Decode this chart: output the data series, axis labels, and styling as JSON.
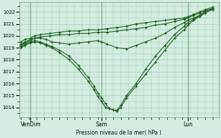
{
  "title": "Pression niveau de la mer( hPa )",
  "bg_color": "#d4ede0",
  "grid_color": "#90c4a8",
  "line_color": "#1a5c1a",
  "ylim": [
    1013.2,
    1022.8
  ],
  "yticks": [
    1014,
    1015,
    1016,
    1017,
    1018,
    1019,
    1020,
    1021,
    1022
  ],
  "xtick_labels": [
    "VenDim",
    "Sam",
    "Lun"
  ],
  "xtick_positions": [
    0.05,
    0.42,
    0.87
  ],
  "series": [
    {
      "x": [
        0.0,
        0.02,
        0.05,
        0.07,
        0.1,
        0.15,
        0.2,
        0.25,
        0.3,
        0.35,
        0.4,
        0.45,
        0.5,
        0.55,
        0.6,
        0.65,
        0.7,
        0.75,
        0.8,
        0.85,
        0.87,
        0.9,
        0.93,
        0.96,
        1.0
      ],
      "y": [
        1019.5,
        1019.7,
        1019.8,
        1020.0,
        1020.1,
        1020.2,
        1020.3,
        1020.4,
        1020.4,
        1020.5,
        1020.5,
        1020.6,
        1020.7,
        1020.8,
        1021.0,
        1021.1,
        1021.2,
        1021.3,
        1021.4,
        1021.5,
        1021.6,
        1021.8,
        1022.0,
        1022.2,
        1022.4
      ]
    },
    {
      "x": [
        0.0,
        0.02,
        0.05,
        0.07,
        0.1,
        0.15,
        0.2,
        0.25,
        0.3,
        0.35,
        0.4,
        0.45,
        0.5,
        0.55,
        0.6,
        0.65,
        0.7,
        0.75,
        0.8,
        0.85,
        0.87,
        0.9,
        0.93,
        0.96,
        1.0
      ],
      "y": [
        1019.3,
        1019.5,
        1019.7,
        1019.8,
        1019.9,
        1020.0,
        1020.1,
        1020.1,
        1020.2,
        1020.2,
        1020.3,
        1020.3,
        1020.4,
        1020.5,
        1020.6,
        1020.7,
        1020.9,
        1021.0,
        1021.2,
        1021.4,
        1021.5,
        1021.7,
        1021.9,
        1022.1,
        1022.3
      ]
    },
    {
      "x": [
        0.0,
        0.02,
        0.05,
        0.07,
        0.1,
        0.13,
        0.16,
        0.2,
        0.25,
        0.3,
        0.35,
        0.4,
        0.42,
        0.45,
        0.5,
        0.55,
        0.6,
        0.65,
        0.7,
        0.75,
        0.8,
        0.85,
        0.87,
        0.9,
        0.93,
        0.96,
        1.0
      ],
      "y": [
        1019.2,
        1019.4,
        1019.6,
        1019.8,
        1019.8,
        1019.7,
        1019.5,
        1019.4,
        1019.3,
        1019.4,
        1019.5,
        1019.6,
        1019.5,
        1019.3,
        1019.0,
        1018.9,
        1019.2,
        1019.5,
        1019.8,
        1020.2,
        1020.7,
        1021.1,
        1021.3,
        1021.5,
        1021.7,
        1022.0,
        1022.2
      ]
    },
    {
      "x": [
        0.0,
        0.02,
        0.05,
        0.07,
        0.1,
        0.13,
        0.16,
        0.2,
        0.25,
        0.3,
        0.35,
        0.38,
        0.4,
        0.42,
        0.44,
        0.46,
        0.48,
        0.5,
        0.52,
        0.55,
        0.6,
        0.65,
        0.7,
        0.75,
        0.8,
        0.85,
        0.87,
        0.9,
        0.93,
        0.96,
        1.0
      ],
      "y": [
        1019.1,
        1019.3,
        1019.5,
        1019.6,
        1019.5,
        1019.3,
        1019.1,
        1018.8,
        1018.3,
        1017.5,
        1016.5,
        1015.8,
        1015.2,
        1014.8,
        1014.3,
        1013.9,
        1013.8,
        1013.7,
        1014.0,
        1014.8,
        1015.8,
        1016.8,
        1017.8,
        1018.8,
        1019.8,
        1020.5,
        1020.9,
        1021.3,
        1021.6,
        1021.9,
        1022.3
      ]
    },
    {
      "x": [
        0.0,
        0.02,
        0.05,
        0.07,
        0.1,
        0.13,
        0.16,
        0.2,
        0.25,
        0.3,
        0.35,
        0.38,
        0.4,
        0.42,
        0.44,
        0.46,
        0.48,
        0.5,
        0.52,
        0.55,
        0.6,
        0.65,
        0.7,
        0.75,
        0.8,
        0.85,
        0.87,
        0.9,
        0.93,
        0.96,
        1.0
      ],
      "y": [
        1019.0,
        1019.2,
        1019.4,
        1019.5,
        1019.4,
        1019.2,
        1019.0,
        1018.6,
        1018.0,
        1017.2,
        1016.2,
        1015.5,
        1014.9,
        1014.5,
        1014.0,
        1013.9,
        1013.8,
        1013.75,
        1014.2,
        1015.0,
        1016.0,
        1017.2,
        1018.3,
        1019.2,
        1020.1,
        1020.8,
        1021.1,
        1021.4,
        1021.7,
        1022.0,
        1022.2
      ]
    }
  ]
}
